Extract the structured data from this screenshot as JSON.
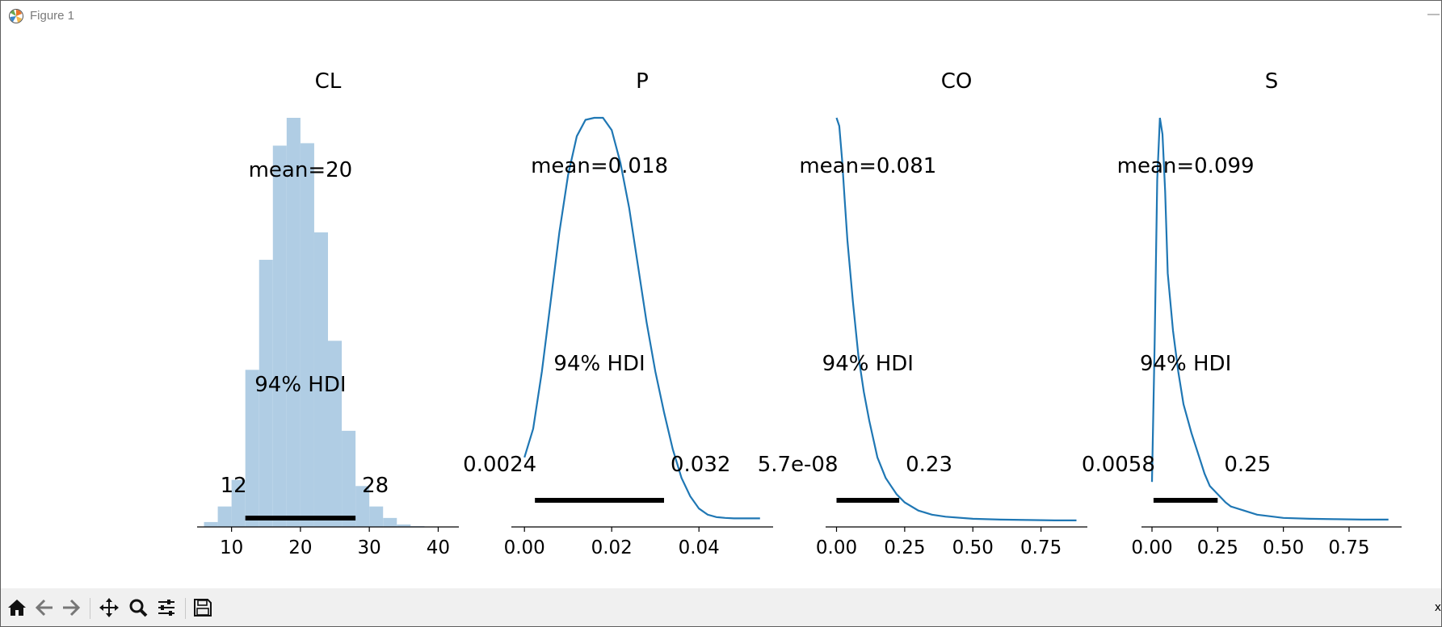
{
  "window": {
    "title": "Figure 1",
    "app_icon": "matplotlib-icon",
    "minimize_label": "—"
  },
  "toolbar": {
    "buttons": [
      {
        "name": "home-icon"
      },
      {
        "name": "back-icon"
      },
      {
        "name": "forward-icon"
      },
      {
        "name": "pan-icon"
      },
      {
        "name": "zoom-icon"
      },
      {
        "name": "configure-subplots-icon"
      },
      {
        "name": "save-icon"
      }
    ],
    "coordinate_readout": "x"
  },
  "colors": {
    "kde_line": "#1f77b4",
    "histogram": "#b0cde4",
    "hdi_bar": "#000000",
    "axis": "#000000",
    "toolbar_bg": "#f0f0f0"
  },
  "chart_data": [
    {
      "type": "histogram",
      "title": "CL",
      "mean_label": "mean=20",
      "hdi_label": "94% HDI",
      "hdi_low_label": "12",
      "hdi_high_label": "28",
      "hdi": [
        12,
        28
      ],
      "xlim": [
        5,
        43
      ],
      "ylim": [
        0,
        1
      ],
      "xticks": [
        10,
        20,
        30,
        40
      ],
      "xtick_labels": [
        "10",
        "20",
        "30",
        "40"
      ],
      "hist_bins": [
        6,
        8,
        10,
        12,
        14,
        16,
        18,
        20,
        22,
        24,
        26,
        28,
        30,
        32,
        34,
        36,
        38
      ],
      "hist_heights": [
        0.012,
        0.05,
        0.115,
        0.384,
        0.653,
        0.932,
        1.0,
        0.938,
        0.72,
        0.455,
        0.235,
        0.1,
        0.05,
        0.022,
        0.006,
        0.002
      ]
    },
    {
      "type": "line",
      "title": "P",
      "mean_label": "mean=0.018",
      "hdi_label": "94% HDI",
      "hdi_low_label": "0.0024",
      "hdi_high_label": "0.032",
      "hdi": [
        0.0024,
        0.032
      ],
      "xlim": [
        -0.003,
        0.057
      ],
      "ylim": [
        0,
        1
      ],
      "xticks": [
        0.0,
        0.02,
        0.04
      ],
      "xtick_labels": [
        "0.00",
        "0.02",
        "0.04"
      ],
      "x": [
        0.0,
        0.002,
        0.004,
        0.006,
        0.008,
        0.01,
        0.012,
        0.014,
        0.016,
        0.017,
        0.018,
        0.02,
        0.022,
        0.024,
        0.026,
        0.028,
        0.03,
        0.032,
        0.034,
        0.036,
        0.038,
        0.04,
        0.042,
        0.044,
        0.046,
        0.048,
        0.05,
        0.052,
        0.054
      ],
      "y": [
        0.17,
        0.24,
        0.38,
        0.55,
        0.72,
        0.86,
        0.955,
        0.995,
        1.0,
        1.0,
        1.0,
        0.97,
        0.89,
        0.78,
        0.64,
        0.5,
        0.38,
        0.28,
        0.19,
        0.12,
        0.075,
        0.045,
        0.03,
        0.024,
        0.022,
        0.021,
        0.021,
        0.021,
        0.021
      ]
    },
    {
      "type": "line",
      "title": "CO",
      "mean_label": "mean=0.081",
      "hdi_label": "94% HDI",
      "hdi_low_label": "5.7e-08",
      "hdi_high_label": "0.23",
      "hdi": [
        0.0,
        0.23
      ],
      "xlim": [
        -0.04,
        0.92
      ],
      "ylim": [
        0,
        1
      ],
      "xticks": [
        0.0,
        0.25,
        0.5,
        0.75
      ],
      "xtick_labels": [
        "0.00",
        "0.25",
        "0.50",
        "0.75"
      ],
      "x": [
        0.0,
        0.01,
        0.02,
        0.03,
        0.04,
        0.06,
        0.08,
        0.1,
        0.12,
        0.15,
        0.18,
        0.2,
        0.22,
        0.25,
        0.3,
        0.35,
        0.4,
        0.5,
        0.6,
        0.7,
        0.8,
        0.88
      ],
      "y": [
        1.0,
        0.98,
        0.9,
        0.8,
        0.7,
        0.55,
        0.42,
        0.33,
        0.26,
        0.17,
        0.12,
        0.1,
        0.08,
        0.06,
        0.04,
        0.03,
        0.025,
        0.02,
        0.018,
        0.017,
        0.016,
        0.016
      ]
    },
    {
      "type": "line",
      "title": "S",
      "mean_label": "mean=0.099",
      "hdi_label": "94% HDI",
      "hdi_low_label": "0.0058",
      "hdi_high_label": "0.25",
      "hdi": [
        0.0058,
        0.25
      ],
      "xlim": [
        -0.04,
        0.95
      ],
      "ylim": [
        0,
        1
      ],
      "xticks": [
        0.0,
        0.25,
        0.5,
        0.75
      ],
      "xtick_labels": [
        "0.00",
        "0.25",
        "0.50",
        "0.75"
      ],
      "x": [
        0.0,
        0.01,
        0.02,
        0.03,
        0.04,
        0.05,
        0.06,
        0.08,
        0.1,
        0.12,
        0.15,
        0.18,
        0.2,
        0.22,
        0.25,
        0.28,
        0.3,
        0.35,
        0.4,
        0.5,
        0.6,
        0.7,
        0.8,
        0.9
      ],
      "y": [
        0.11,
        0.45,
        0.85,
        1.0,
        0.96,
        0.82,
        0.62,
        0.48,
        0.38,
        0.3,
        0.23,
        0.17,
        0.13,
        0.1,
        0.08,
        0.06,
        0.05,
        0.04,
        0.03,
        0.022,
        0.02,
        0.019,
        0.018,
        0.018
      ]
    }
  ]
}
